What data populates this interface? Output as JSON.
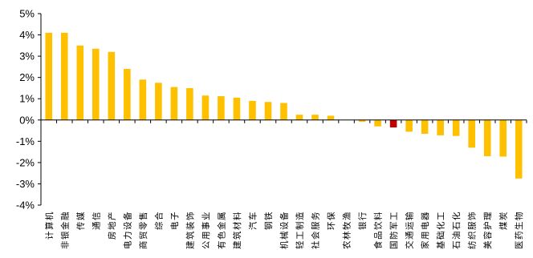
{
  "chart_data": {
    "type": "bar",
    "categories": [
      "计算机",
      "非银金融",
      "传媒",
      "通信",
      "房地产",
      "电力设备",
      "商贸零售",
      "综合",
      "电子",
      "建筑装饰",
      "公用事业",
      "有色金属",
      "建筑材料",
      "汽车",
      "钢铁",
      "机械设备",
      "轻工制造",
      "社会服务",
      "环保",
      "农林牧渔",
      "银行",
      "食品饮料",
      "国防军工",
      "交通运输",
      "家用电器",
      "基础化工",
      "石油石化",
      "纺织服饰",
      "美容护理",
      "煤炭",
      "医药生物"
    ],
    "values": [
      4.1,
      4.1,
      3.5,
      3.35,
      3.2,
      2.4,
      1.9,
      1.75,
      1.55,
      1.5,
      1.15,
      1.12,
      1.05,
      0.9,
      0.85,
      0.8,
      0.25,
      0.25,
      0.2,
      0.0,
      -0.08,
      -0.3,
      -0.35,
      -0.55,
      -0.65,
      -0.72,
      -0.75,
      -1.3,
      -1.7,
      -1.72,
      -2.75
    ],
    "highlight_index": 22,
    "ylim": [
      -4,
      5
    ],
    "yticks": [
      "-4%",
      "-3%",
      "-2%",
      "-1%",
      "0%",
      "1%",
      "2%",
      "3%",
      "4%",
      "5%"
    ],
    "colors": {
      "bar": "#FFC000",
      "highlight": "#C00000",
      "axis": "#000000"
    }
  }
}
